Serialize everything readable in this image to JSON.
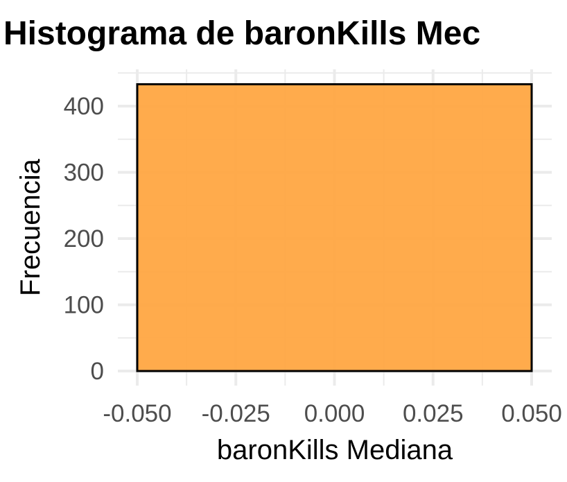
{
  "chart_data": {
    "type": "bar",
    "title": "Histograma de baronKills Mec",
    "xlabel": "baronKills Mediana",
    "ylabel": "Frecuencia",
    "xlim": [
      -0.055,
      0.055
    ],
    "ylim": [
      0,
      450
    ],
    "x_ticks": [
      -0.05,
      -0.025,
      0.0,
      0.025,
      0.05
    ],
    "x_tick_labels": [
      "-0.050",
      "-0.025",
      "0.000",
      "0.025",
      "0.050"
    ],
    "y_ticks": [
      0,
      100,
      200,
      300,
      400
    ],
    "y_tick_labels": [
      "0",
      "100",
      "200",
      "300",
      "400"
    ],
    "bins": [
      {
        "x_start": -0.05,
        "x_end": 0.05,
        "count": 433
      }
    ],
    "grid": true,
    "fill_color": "#ffa742",
    "edge_color": "#000000",
    "grid_color": "#ebebeb"
  }
}
